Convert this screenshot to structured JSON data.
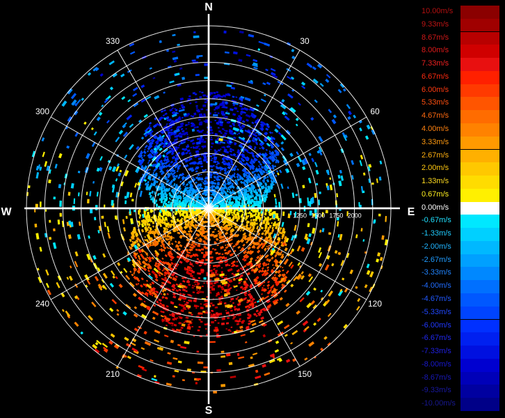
{
  "chart_data": {
    "type": "polar-scatter",
    "title": "",
    "compass": {
      "north": "N",
      "east": "E",
      "south": "S",
      "west": "W"
    },
    "angle_labels": [
      {
        "deg": 30,
        "label": "30"
      },
      {
        "deg": 60,
        "label": "60"
      },
      {
        "deg": 120,
        "label": "120"
      },
      {
        "deg": 150,
        "label": "150"
      },
      {
        "deg": 210,
        "label": "210"
      },
      {
        "deg": 240,
        "label": "240"
      },
      {
        "deg": 300,
        "label": "300"
      },
      {
        "deg": 330,
        "label": "330"
      }
    ],
    "range_rings": [
      250,
      500,
      750,
      1000,
      1250,
      1500,
      1750,
      2000,
      2250,
      2500
    ],
    "range_labels": [
      {
        "value": 1250,
        "label": "1250"
      },
      {
        "value": 1500,
        "label": "1500"
      },
      {
        "value": 1750,
        "label": "1750"
      },
      {
        "value": 2000,
        "label": "2000"
      }
    ],
    "range_max": 2500,
    "grid": true,
    "legend_position": "right",
    "legend": [
      {
        "label": "10.00m/s",
        "color": "#8b0000",
        "text_color": "#b01010"
      },
      {
        "label": "9.33m/s",
        "color": "#a00000",
        "text_color": "#c01515"
      },
      {
        "label": "8.67m/s",
        "color": "#b80000",
        "text_color": "#d01818"
      },
      {
        "label": "8.00m/s",
        "color": "#d00000",
        "text_color": "#e01a1a"
      },
      {
        "label": "7.33m/s",
        "color": "#e81010",
        "text_color": "#f02020"
      },
      {
        "label": "6.67m/s",
        "color": "#ff2000",
        "text_color": "#ff2a10"
      },
      {
        "label": "6.00m/s",
        "color": "#ff3a00",
        "text_color": "#ff3a10"
      },
      {
        "label": "5.33m/s",
        "color": "#ff5500",
        "text_color": "#ff5010"
      },
      {
        "label": "4.67m/s",
        "color": "#ff6c00",
        "text_color": "#ff6a10"
      },
      {
        "label": "4.00m/s",
        "color": "#ff8200",
        "text_color": "#ff8210"
      },
      {
        "label": "3.33m/s",
        "color": "#ff9a00",
        "text_color": "#ff9a10"
      },
      {
        "label": "2.67m/s",
        "color": "#ffb000",
        "text_color": "#ffb010"
      },
      {
        "label": "2.00m/s",
        "color": "#ffc800",
        "text_color": "#ffc810"
      },
      {
        "label": "1.33m/s",
        "color": "#ffdc00",
        "text_color": "#ffdc20"
      },
      {
        "label": "0.67m/s",
        "color": "#fff000",
        "text_color": "#fff020"
      },
      {
        "label": "0.00m/s",
        "color": "#ffffff",
        "text_color": "#ffffff"
      },
      {
        "label": "-0.67m/s",
        "color": "#00e8ff",
        "text_color": "#20e0ff"
      },
      {
        "label": "-1.33m/s",
        "color": "#00d0ff",
        "text_color": "#20ccff"
      },
      {
        "label": "-2.00m/s",
        "color": "#00b8ff",
        "text_color": "#20b4ff"
      },
      {
        "label": "-2.67m/s",
        "color": "#00a0ff",
        "text_color": "#209cff"
      },
      {
        "label": "-3.33m/s",
        "color": "#0088ff",
        "text_color": "#2084ff"
      },
      {
        "label": "-4.00m/s",
        "color": "#0070ff",
        "text_color": "#206cff"
      },
      {
        "label": "-4.67m/s",
        "color": "#0058ff",
        "text_color": "#2058ff"
      },
      {
        "label": "-5.33m/s",
        "color": "#0044ff",
        "text_color": "#2048ff"
      },
      {
        "label": "-6.00m/s",
        "color": "#0030ff",
        "text_color": "#2038ff"
      },
      {
        "label": "-6.67m/s",
        "color": "#0020f0",
        "text_color": "#2028f0"
      },
      {
        "label": "-7.33m/s",
        "color": "#0010e0",
        "text_color": "#2020e0"
      },
      {
        "label": "-8.00m/s",
        "color": "#0000d0",
        "text_color": "#1818d0"
      },
      {
        "label": "-8.67m/s",
        "color": "#0000b8",
        "text_color": "#1818b8"
      },
      {
        "label": "-9.33m/s",
        "color": "#0000a0",
        "text_color": "#1818a0"
      },
      {
        "label": "-10.00m/s",
        "color": "#000088",
        "text_color": "#181890"
      }
    ]
  }
}
